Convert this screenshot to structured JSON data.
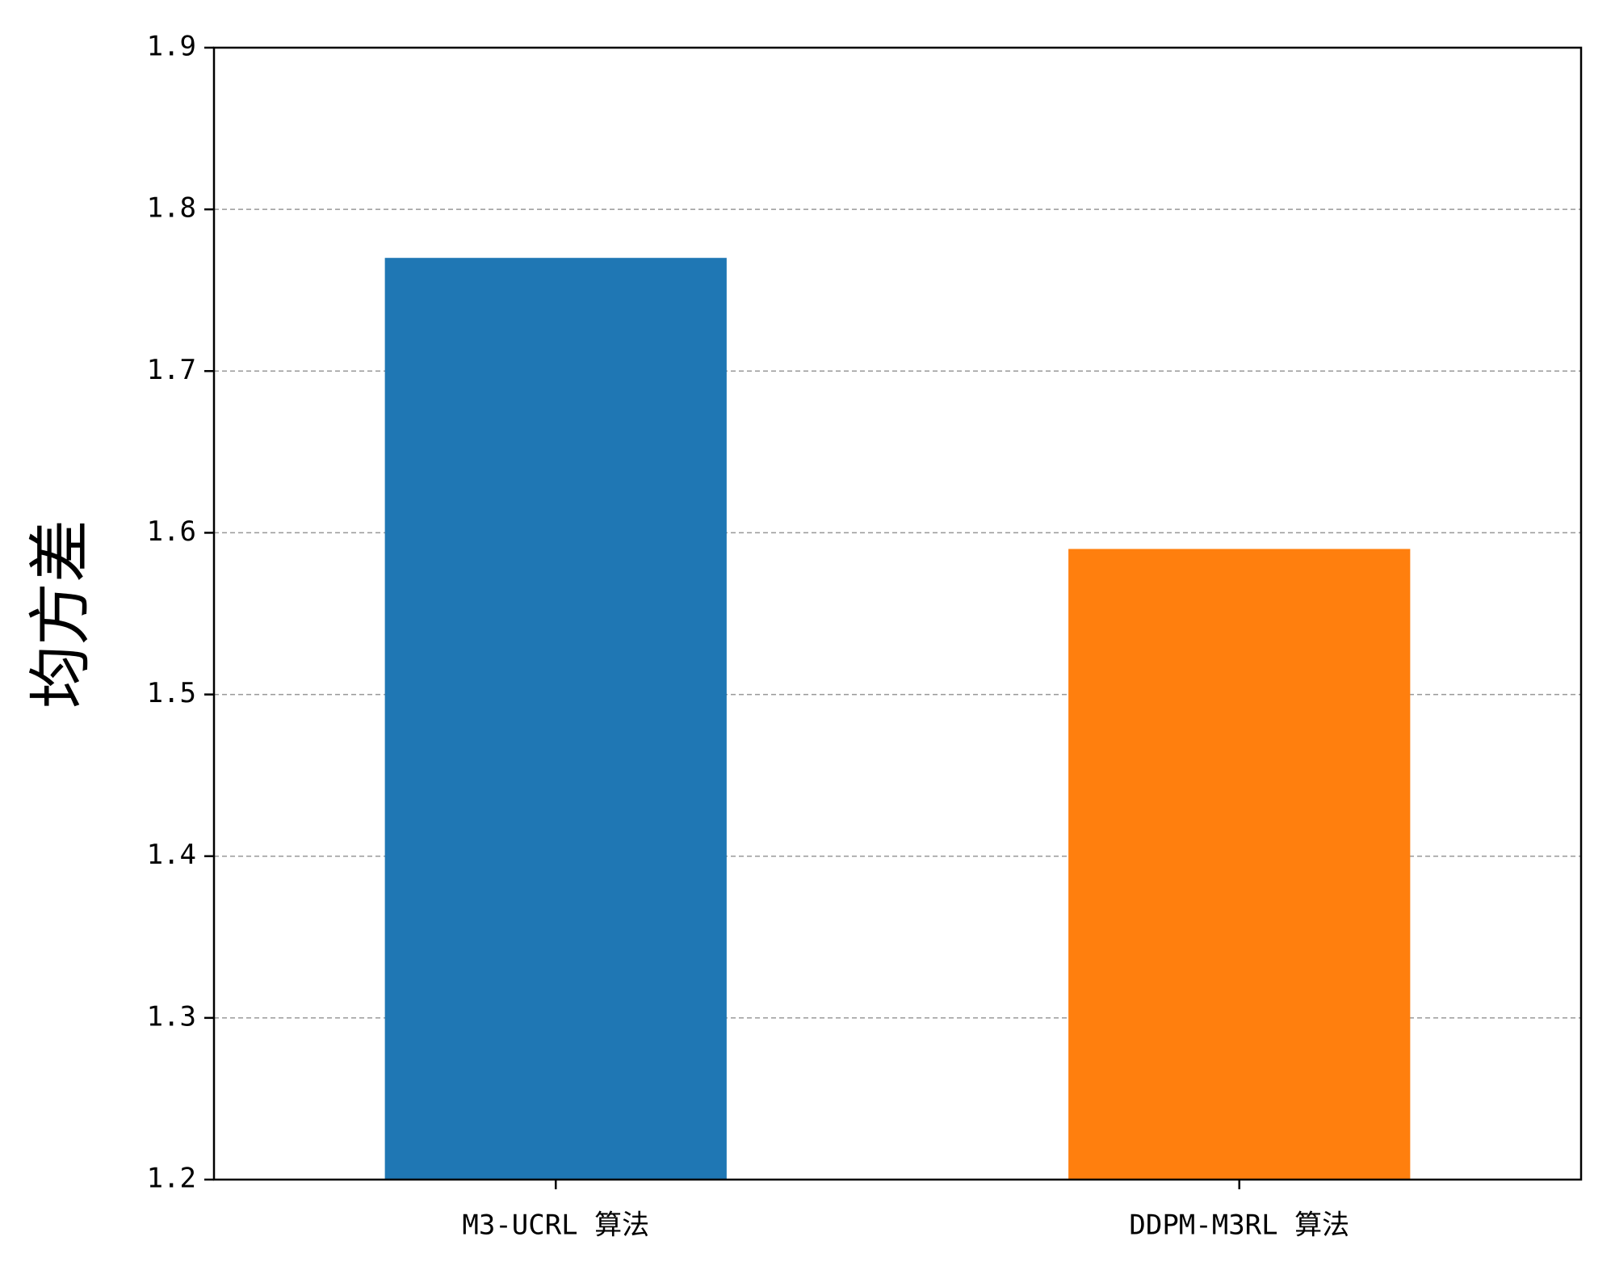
{
  "chart_data": {
    "type": "bar",
    "y_label": "均方差",
    "categories": [
      "M3-UCRL 算法",
      "DDPM-M3RL 算法"
    ],
    "values": [
      1.77,
      1.59
    ],
    "colors": [
      "#1f77b4",
      "#ff7f0e"
    ],
    "ylim": [
      1.2,
      1.9
    ],
    "yticks": [
      1.2,
      1.3,
      1.4,
      1.5,
      1.6,
      1.7,
      1.8,
      1.9
    ],
    "grid": true
  }
}
